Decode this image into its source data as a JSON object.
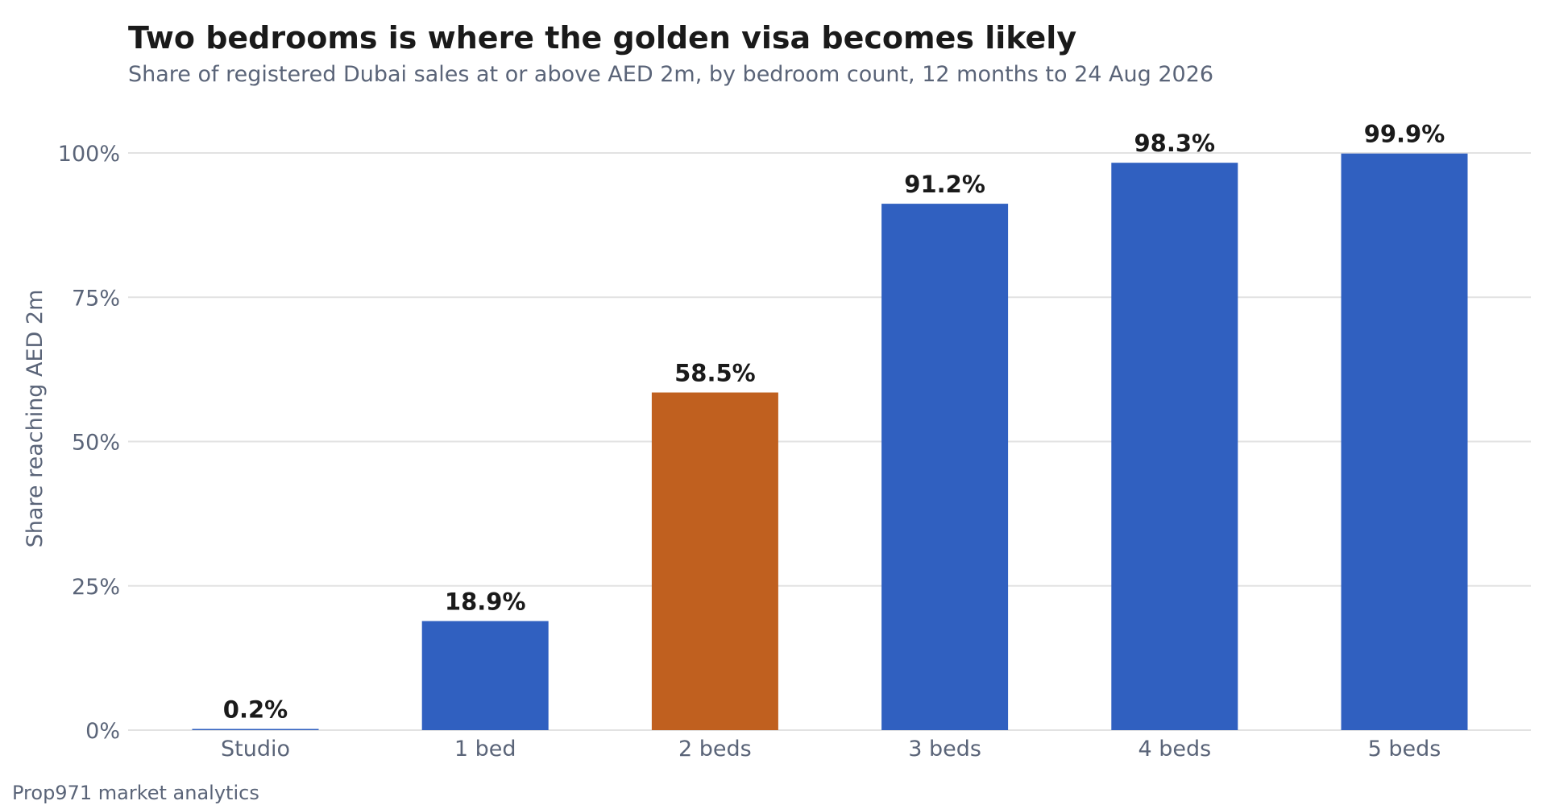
{
  "chart_data": {
    "type": "bar",
    "title": "Two bedrooms is where the golden visa becomes likely",
    "subtitle": "Share of registered Dubai sales at or above AED 2m, by bedroom count, 12 months to 24 Aug 2026",
    "ylabel": "Share reaching AED 2m",
    "xlabel": "",
    "categories": [
      "Studio",
      "1 bed",
      "2 beds",
      "3 beds",
      "4 beds",
      "5 beds"
    ],
    "values": [
      0.2,
      18.9,
      58.5,
      91.2,
      98.3,
      99.9
    ],
    "data_labels": [
      "0.2%",
      "18.9%",
      "58.5%",
      "91.2%",
      "98.3%",
      "99.9%"
    ],
    "ylim": [
      0,
      100
    ],
    "yticks": [
      0,
      25,
      50,
      75,
      100
    ],
    "ytick_labels": [
      "0%",
      "25%",
      "50%",
      "75%",
      "100%"
    ],
    "grid": true,
    "legend": "none",
    "colors": {
      "default": "#3060c0",
      "highlight": "#c0601f",
      "highlight_category": "2 beds"
    },
    "source": "Prop971 market analytics"
  }
}
